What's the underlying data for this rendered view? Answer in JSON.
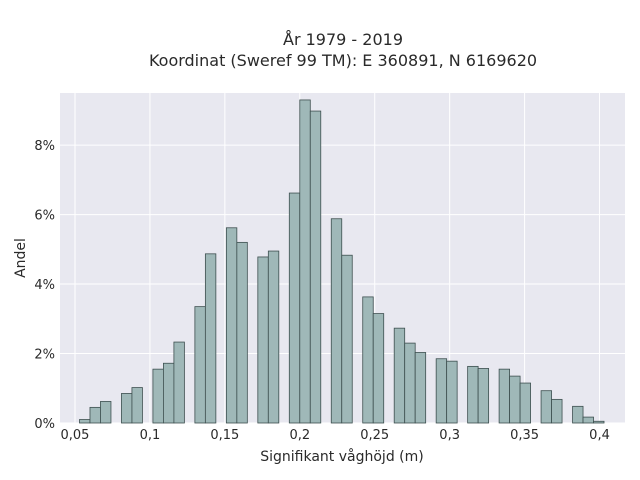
{
  "chart_data": {
    "type": "bar",
    "title": "År 1979 - 2019",
    "subtitle": "Koordinat (Sweref 99 TM): E 360891, N 6169620",
    "xlabel": "Signifikant våghöjd (m)",
    "ylabel": "Andel",
    "xlim": [
      0.04,
      0.417
    ],
    "ylim": [
      0,
      9.5
    ],
    "x_ticks": [
      0.05,
      0.1,
      0.15,
      0.2,
      0.25,
      0.3,
      0.35,
      0.4
    ],
    "x_tick_labels": [
      "0,05",
      "0,1",
      "0,15",
      "0,2",
      "0,25",
      "0,3",
      "0,35",
      "0,4"
    ],
    "y_ticks": [
      0,
      2,
      4,
      6,
      8
    ],
    "y_tick_labels": [
      "0%",
      "2%",
      "4%",
      "6%",
      "8%"
    ],
    "bin_width": 0.007,
    "grid": true,
    "colors": {
      "bar_fill": "#9fb8b8",
      "bar_edge": "#3d4f4f",
      "plot_bg": "#e8e8f0",
      "grid": "#ffffff"
    },
    "bins_start": [
      0.053,
      0.06,
      0.067,
      0.081,
      0.088,
      0.102,
      0.109,
      0.116,
      0.13,
      0.137,
      0.151,
      0.158,
      0.172,
      0.179,
      0.193,
      0.2,
      0.207,
      0.221,
      0.228,
      0.242,
      0.249,
      0.263,
      0.27,
      0.277,
      0.291,
      0.298,
      0.312,
      0.319,
      0.333,
      0.34,
      0.347,
      0.361,
      0.368,
      0.382,
      0.389,
      0.396
    ],
    "values": [
      0.1,
      0.45,
      0.62,
      0.85,
      1.02,
      1.55,
      1.72,
      2.33,
      3.35,
      4.87,
      5.62,
      5.2,
      4.78,
      4.95,
      6.62,
      9.3,
      8.98,
      5.88,
      4.83,
      3.63,
      3.15,
      2.73,
      2.3,
      2.03,
      1.85,
      1.78,
      1.63,
      1.57,
      1.55,
      1.35,
      1.15,
      0.93,
      0.68,
      0.48,
      0.17,
      0.05
    ]
  }
}
